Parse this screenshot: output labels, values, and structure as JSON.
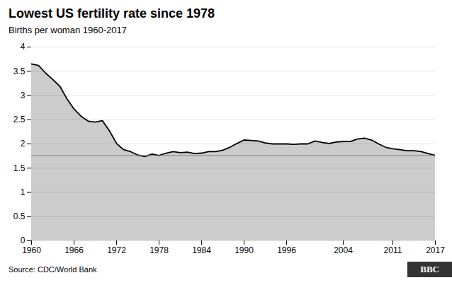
{
  "chart_data": {
    "type": "area",
    "title": "Lowest US fertility rate since 1978",
    "subtitle": "Births per woman 1960-2017",
    "source": "Source: CDC/World Bank",
    "logo": "BBC",
    "x": [
      1960,
      1961,
      1962,
      1963,
      1964,
      1965,
      1966,
      1967,
      1968,
      1969,
      1970,
      1971,
      1972,
      1973,
      1974,
      1975,
      1976,
      1977,
      1978,
      1979,
      1980,
      1981,
      1982,
      1983,
      1984,
      1985,
      1986,
      1987,
      1988,
      1989,
      1990,
      1991,
      1992,
      1993,
      1994,
      1995,
      1996,
      1997,
      1998,
      1999,
      2000,
      2001,
      2002,
      2003,
      2004,
      2005,
      2006,
      2007,
      2008,
      2009,
      2010,
      2011,
      2012,
      2013,
      2014,
      2015,
      2016,
      2017
    ],
    "values": [
      3.65,
      3.62,
      3.46,
      3.33,
      3.19,
      2.93,
      2.72,
      2.57,
      2.47,
      2.45,
      2.48,
      2.27,
      2.01,
      1.88,
      1.84,
      1.77,
      1.74,
      1.79,
      1.76,
      1.81,
      1.84,
      1.82,
      1.83,
      1.8,
      1.81,
      1.84,
      1.84,
      1.87,
      1.93,
      2.01,
      2.08,
      2.07,
      2.06,
      2.02,
      2.0,
      2.0,
      2.0,
      1.99,
      2.0,
      2.0,
      2.06,
      2.03,
      2.01,
      2.04,
      2.05,
      2.05,
      2.1,
      2.12,
      2.08,
      2.0,
      1.93,
      1.9,
      1.88,
      1.86,
      1.86,
      1.84,
      1.8,
      1.76
    ],
    "reference_line": 1.76,
    "xlim": [
      1960,
      2017
    ],
    "ylim": [
      0,
      4
    ],
    "xticks": [
      1960,
      1966,
      1972,
      1978,
      1984,
      1990,
      1996,
      2004,
      2011,
      2017
    ],
    "yticks": [
      0,
      0.5,
      1,
      1.5,
      2,
      2.5,
      3,
      3.5,
      4
    ],
    "grid": true
  }
}
